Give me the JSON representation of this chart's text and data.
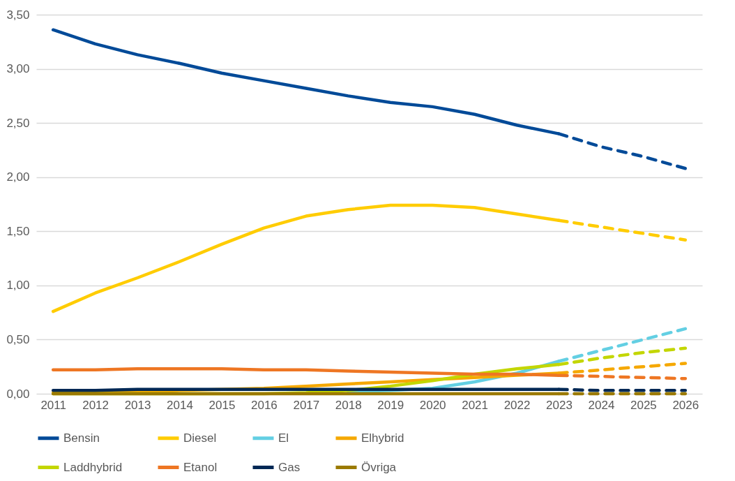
{
  "chart_data": {
    "type": "line",
    "categories": [
      "2011",
      "2012",
      "2013",
      "2014",
      "2015",
      "2016",
      "2017",
      "2018",
      "2019",
      "2020",
      "2021",
      "2022",
      "2023",
      "2024",
      "2025",
      "2026"
    ],
    "ylim": [
      0,
      3.5
    ],
    "yticks": [
      {
        "value": 0,
        "label": "0,00"
      },
      {
        "value": 0.5,
        "label": "0,50"
      },
      {
        "value": 1,
        "label": "1,00"
      },
      {
        "value": 1.5,
        "label": "1,50"
      },
      {
        "value": 2,
        "label": "2,00"
      },
      {
        "value": 2.5,
        "label": "2,50"
      },
      {
        "value": 3,
        "label": "3,00"
      },
      {
        "value": 3.5,
        "label": "3,50"
      }
    ],
    "grid": "y",
    "legend": "bottom",
    "marker": "none",
    "series": [
      {
        "name": "Bensin",
        "color": "#004a98",
        "line_style": "solid",
        "values": [
          3.36,
          3.23,
          3.13,
          3.05,
          2.96,
          2.89,
          2.82,
          2.75,
          2.69,
          2.65,
          2.58,
          2.48,
          2.4,
          null,
          null,
          null
        ]
      },
      {
        "name": "Diesel",
        "color": "#ffcc00",
        "line_style": "solid",
        "values": [
          0.76,
          0.93,
          1.07,
          1.22,
          1.38,
          1.53,
          1.64,
          1.7,
          1.74,
          1.74,
          1.72,
          1.66,
          1.6,
          null,
          null,
          null
        ]
      },
      {
        "name": "El",
        "color": "#63cfe3",
        "line_style": "solid",
        "values": [
          null,
          null,
          null,
          null,
          null,
          null,
          null,
          0.02,
          0.03,
          0.05,
          0.11,
          0.19,
          0.3,
          null,
          null,
          null
        ]
      },
      {
        "name": "Elhybrid",
        "color": "#f5a800",
        "line_style": "solid",
        "values": [
          0.01,
          0.01,
          0.02,
          0.03,
          0.04,
          0.05,
          0.07,
          0.09,
          0.11,
          0.13,
          0.15,
          0.17,
          0.19,
          null,
          null,
          null
        ]
      },
      {
        "name": "Laddhybrid",
        "color": "#c3d600",
        "line_style": "solid",
        "values": [
          0.0,
          0.0,
          0.0,
          0.0,
          0.0,
          0.0,
          0.01,
          0.03,
          0.07,
          0.12,
          0.18,
          0.23,
          0.27,
          null,
          null,
          null
        ]
      },
      {
        "name": "Etanol",
        "color": "#ee7623",
        "line_style": "solid",
        "values": [
          0.22,
          0.22,
          0.23,
          0.23,
          0.23,
          0.22,
          0.22,
          0.21,
          0.2,
          0.19,
          0.18,
          0.18,
          0.17,
          null,
          null,
          null
        ]
      },
      {
        "name": "Gas",
        "color": "#002855",
        "line_style": "solid",
        "values": [
          0.03,
          0.03,
          0.04,
          0.04,
          0.04,
          0.04,
          0.04,
          0.04,
          0.04,
          0.04,
          0.04,
          0.04,
          0.04,
          null,
          null,
          null
        ]
      },
      {
        "name": "Övriga",
        "color": "#9b7a00",
        "line_style": "solid",
        "values": [
          0,
          0,
          0,
          0,
          0,
          0,
          0,
          0,
          0,
          0,
          0,
          0,
          0,
          null,
          null,
          null
        ]
      },
      {
        "color": "#004a98",
        "line_style": "dashed",
        "values": [
          null,
          null,
          null,
          null,
          null,
          null,
          null,
          null,
          null,
          null,
          null,
          null,
          2.4,
          2.28,
          2.19,
          2.08
        ]
      },
      {
        "color": "#ffcc00",
        "line_style": "dashed",
        "values": [
          null,
          null,
          null,
          null,
          null,
          null,
          null,
          null,
          null,
          null,
          null,
          null,
          1.6,
          1.54,
          1.48,
          1.42
        ]
      },
      {
        "color": "#63cfe3",
        "line_style": "dashed",
        "values": [
          null,
          null,
          null,
          null,
          null,
          null,
          null,
          null,
          null,
          null,
          null,
          null,
          0.3,
          0.4,
          0.5,
          0.6
        ]
      },
      {
        "color": "#f5a800",
        "line_style": "dashed",
        "values": [
          null,
          null,
          null,
          null,
          null,
          null,
          null,
          null,
          null,
          null,
          null,
          null,
          0.19,
          0.22,
          0.25,
          0.28
        ]
      },
      {
        "color": "#c3d600",
        "line_style": "dashed",
        "values": [
          null,
          null,
          null,
          null,
          null,
          null,
          null,
          null,
          null,
          null,
          null,
          null,
          0.27,
          0.33,
          0.38,
          0.42
        ]
      },
      {
        "color": "#ee7623",
        "line_style": "dashed",
        "values": [
          null,
          null,
          null,
          null,
          null,
          null,
          null,
          null,
          null,
          null,
          null,
          null,
          0.17,
          0.16,
          0.15,
          0.14
        ]
      },
      {
        "color": "#002855",
        "line_style": "dashed",
        "values": [
          null,
          null,
          null,
          null,
          null,
          null,
          null,
          null,
          null,
          null,
          null,
          null,
          0.04,
          0.03,
          0.03,
          0.03
        ]
      },
      {
        "color": "#9b7a00",
        "line_style": "dashed",
        "values": [
          null,
          null,
          null,
          null,
          null,
          null,
          null,
          null,
          null,
          null,
          null,
          null,
          0,
          0,
          0,
          0
        ]
      }
    ]
  }
}
